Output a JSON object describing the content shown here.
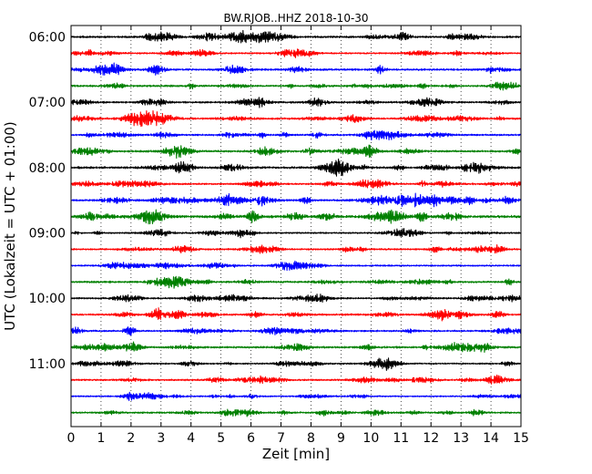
{
  "chart_data": {
    "type": "line",
    "title": "BW.RJOB..HHZ 2018-10-30",
    "xlabel": "Zeit  [min]",
    "ylabel": "UTC (Lokalzeit = UTC + 01:00)",
    "xlim": [
      0,
      15
    ],
    "x_ticks": [
      "0",
      "1",
      "2",
      "3",
      "4",
      "5",
      "6",
      "7",
      "8",
      "9",
      "10",
      "11",
      "12",
      "13",
      "14",
      "15"
    ],
    "y_ticks": [
      "06:00",
      "07:00",
      "08:00",
      "09:00",
      "10:00",
      "11:00"
    ],
    "grid": "vertical dotted",
    "colors": [
      "#000000",
      "#ff0000",
      "#0000ff",
      "#008000"
    ],
    "traces": [
      {
        "start": "06:00",
        "color": "#000000",
        "amplitude": 0.3,
        "events": []
      },
      {
        "start": "06:15",
        "color": "#ff0000",
        "amplitude": 0.22,
        "events": []
      },
      {
        "start": "06:30",
        "color": "#0000ff",
        "amplitude": 0.28,
        "events": []
      },
      {
        "start": "06:45",
        "color": "#008000",
        "amplitude": 0.28,
        "events": []
      },
      {
        "start": "07:00",
        "color": "#000000",
        "amplitude": 0.28,
        "events": []
      },
      {
        "start": "07:15",
        "color": "#ff0000",
        "amplitude": 0.28,
        "events": []
      },
      {
        "start": "07:30",
        "color": "#0000ff",
        "amplitude": 0.25,
        "events": []
      },
      {
        "start": "07:45",
        "color": "#008000",
        "amplitude": 0.3,
        "events": []
      },
      {
        "start": "08:00",
        "color": "#000000",
        "amplitude": 0.32,
        "events": []
      },
      {
        "start": "08:15",
        "color": "#ff0000",
        "amplitude": 0.25,
        "events": []
      },
      {
        "start": "08:30",
        "color": "#0000ff",
        "amplitude": 0.28,
        "events": [
          {
            "start_min": 8.6,
            "end_min": 15,
            "peak_min": 11.3,
            "peak_amplitude": 1.35
          }
        ]
      },
      {
        "start": "08:45",
        "color": "#008000",
        "amplitude": 0.38,
        "events": [
          {
            "start_min": 0,
            "end_min": 3.6,
            "peak_min": 0.4,
            "peak_amplitude": 0.7
          }
        ]
      },
      {
        "start": "09:00",
        "color": "#000000",
        "amplitude": 0.22,
        "events": []
      },
      {
        "start": "09:15",
        "color": "#ff0000",
        "amplitude": 0.25,
        "events": [
          {
            "start_min": 12.4,
            "end_min": 13.0,
            "peak_min": 12.7,
            "peak_amplitude": 0.45
          }
        ]
      },
      {
        "start": "09:30",
        "color": "#0000ff",
        "amplitude": 0.22,
        "events": []
      },
      {
        "start": "09:45",
        "color": "#008000",
        "amplitude": 0.28,
        "events": []
      },
      {
        "start": "10:00",
        "color": "#000000",
        "amplitude": 0.25,
        "events": []
      },
      {
        "start": "10:15",
        "color": "#ff0000",
        "amplitude": 0.28,
        "events": []
      },
      {
        "start": "10:30",
        "color": "#0000ff",
        "amplitude": 0.25,
        "events": [
          {
            "start_min": 4.1,
            "end_min": 4.8,
            "peak_min": 4.4,
            "peak_amplitude": 0.5
          }
        ]
      },
      {
        "start": "10:45",
        "color": "#008000",
        "amplitude": 0.3,
        "events": []
      },
      {
        "start": "11:00",
        "color": "#000000",
        "amplitude": 0.22,
        "events": []
      },
      {
        "start": "11:15",
        "color": "#ff0000",
        "amplitude": 0.25,
        "events": []
      },
      {
        "start": "11:30",
        "color": "#0000ff",
        "amplitude": 0.2,
        "events": []
      },
      {
        "start": "11:45",
        "color": "#008000",
        "amplitude": 0.25,
        "events": []
      }
    ]
  }
}
